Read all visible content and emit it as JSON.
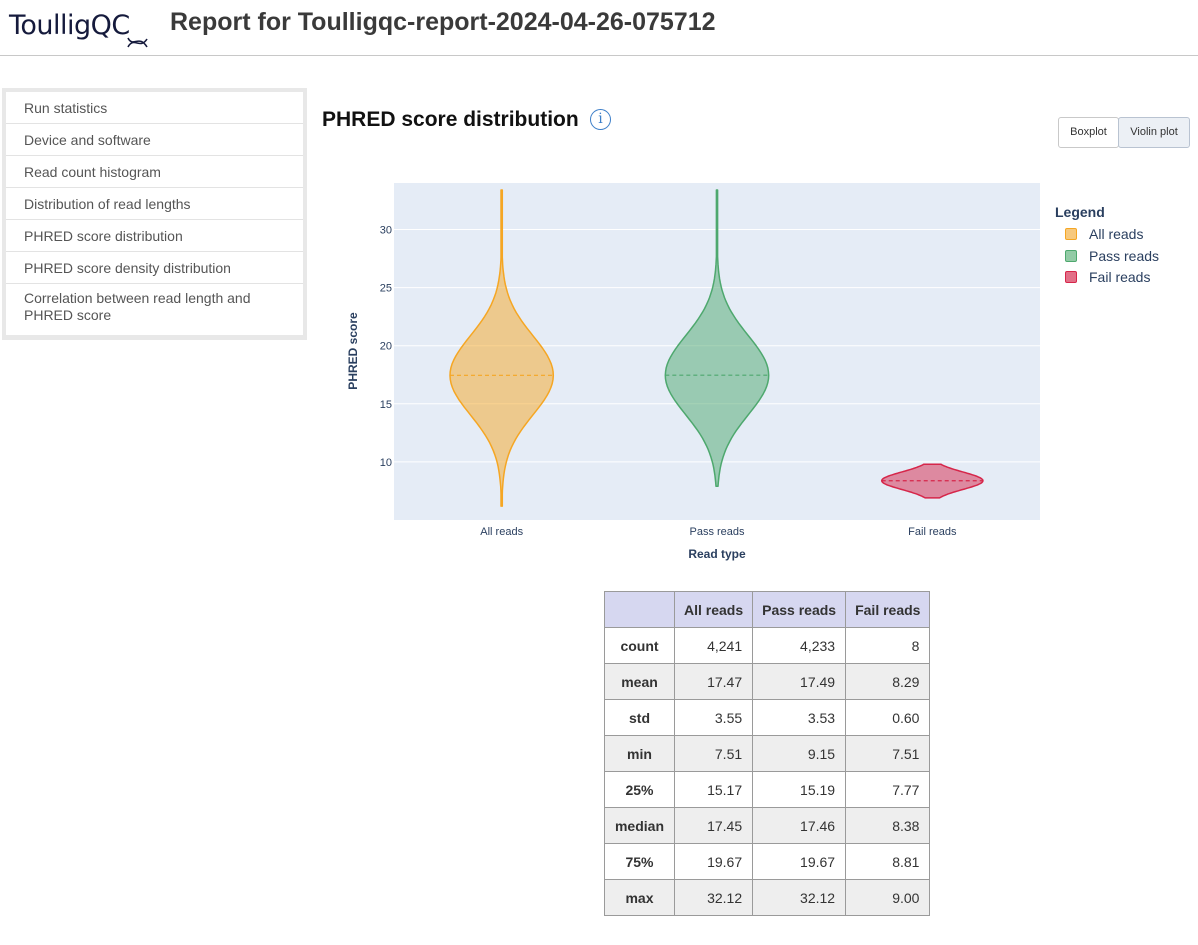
{
  "header": {
    "logo_text": "ToulligQC",
    "title": "Report for Toulligqc-report-2024-04-26-075712"
  },
  "sidebar": {
    "items": [
      {
        "label": "Run statistics"
      },
      {
        "label": "Device and software"
      },
      {
        "label": "Read count histogram"
      },
      {
        "label": "Distribution of read lengths"
      },
      {
        "label": "PHRED score distribution"
      },
      {
        "label": "PHRED score density distribution"
      },
      {
        "label": "Correlation between read length and PHRED score"
      }
    ]
  },
  "section": {
    "title": "PHRED score distribution",
    "info_icon": "i"
  },
  "toggle": {
    "boxplot_label": "Boxplot",
    "violin_label": "Violin plot",
    "active": "Violin plot"
  },
  "chart_data": {
    "type": "violin",
    "title": "",
    "xlabel": "Read type",
    "ylabel": "PHRED score",
    "categories": [
      "All reads",
      "Pass reads",
      "Fail reads"
    ],
    "ylim": [
      5,
      34
    ],
    "yticks": [
      10,
      15,
      20,
      25,
      30
    ],
    "grid": true,
    "legend_title": "Legend",
    "legend_position": "right",
    "series": [
      {
        "name": "All reads",
        "color": "#f5a623",
        "min": 6.2,
        "max": 33.4,
        "median": 17.45,
        "mean": 17.47
      },
      {
        "name": "Pass reads",
        "color": "#4ea86e",
        "min": 7.9,
        "max": 33.4,
        "median": 17.46,
        "mean": 17.49
      },
      {
        "name": "Fail reads",
        "color": "#d6264a",
        "min": 6.9,
        "max": 9.8,
        "median": 8.38,
        "mean": 8.29
      }
    ]
  },
  "stats_table": {
    "columns": [
      "",
      "All reads",
      "Pass reads",
      "Fail reads"
    ],
    "rows": [
      {
        "label": "count",
        "values": [
          "4,241",
          "4,233",
          "8"
        ]
      },
      {
        "label": "mean",
        "values": [
          "17.47",
          "17.49",
          "8.29"
        ]
      },
      {
        "label": "std",
        "values": [
          "3.55",
          "3.53",
          "0.60"
        ]
      },
      {
        "label": "min",
        "values": [
          "7.51",
          "9.15",
          "7.51"
        ]
      },
      {
        "label": "25%",
        "values": [
          "15.17",
          "15.19",
          "7.77"
        ]
      },
      {
        "label": "median",
        "values": [
          "17.45",
          "17.46",
          "8.38"
        ]
      },
      {
        "label": "75%",
        "values": [
          "19.67",
          "19.67",
          "8.81"
        ]
      },
      {
        "label": "max",
        "values": [
          "32.12",
          "32.12",
          "9.00"
        ]
      }
    ]
  }
}
